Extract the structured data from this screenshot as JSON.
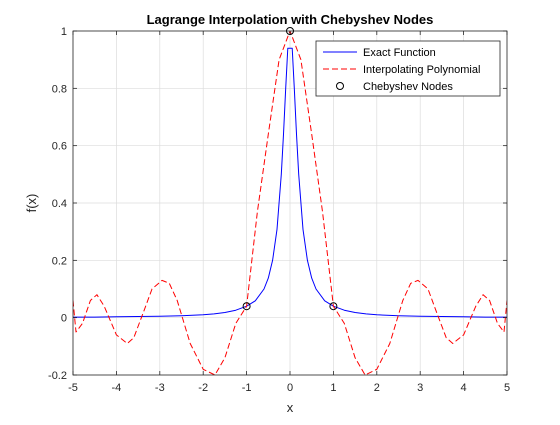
{
  "chart_data": {
    "type": "line",
    "title": "Lagrange Interpolation with Chebyshev Nodes",
    "xlabel": "x",
    "ylabel": "f(x)",
    "xlim": [
      -5,
      5
    ],
    "ylim": [
      -0.2,
      1
    ],
    "xticks": [
      -5,
      -4,
      -3,
      -2,
      -1,
      0,
      1,
      2,
      3,
      4,
      5
    ],
    "yticks": [
      -0.2,
      0,
      0.2,
      0.4,
      0.6,
      0.8,
      1
    ],
    "grid": true,
    "legend_position": "top-right",
    "series": [
      {
        "name": "Exact Function",
        "style": "solid",
        "color": "#0000ff",
        "x": [
          -5,
          -4.5,
          -4,
          -3.5,
          -3,
          -2.5,
          -2,
          -1.75,
          -1.5,
          -1.25,
          -1,
          -0.8,
          -0.6,
          -0.5,
          -0.4,
          -0.3,
          -0.2,
          -0.15,
          -0.1,
          -0.05,
          0,
          0.05,
          0.1,
          0.15,
          0.2,
          0.3,
          0.4,
          0.5,
          0.6,
          0.8,
          1,
          1.25,
          1.5,
          1.75,
          2,
          2.5,
          3,
          3.5,
          4,
          4.5,
          5
        ],
        "y": [
          0.002,
          0.002,
          0.003,
          0.004,
          0.005,
          0.007,
          0.01,
          0.013,
          0.018,
          0.026,
          0.04,
          0.059,
          0.1,
          0.138,
          0.2,
          0.308,
          0.5,
          0.64,
          0.8,
          0.94,
          0.94,
          0.94,
          0.8,
          0.64,
          0.5,
          0.308,
          0.2,
          0.138,
          0.1,
          0.059,
          0.04,
          0.026,
          0.018,
          0.013,
          0.01,
          0.007,
          0.005,
          0.004,
          0.003,
          0.002,
          0.002
        ]
      },
      {
        "name": "Interpolating Polynomial",
        "style": "dashed",
        "color": "#ff0000",
        "x": [
          -5,
          -4.93,
          -4.78,
          -4.6,
          -4.45,
          -4.28,
          -4.0,
          -3.75,
          -3.6,
          -3.35,
          -3.18,
          -2.95,
          -2.78,
          -2.6,
          -2.3,
          -2.0,
          -1.73,
          -1.5,
          -1.25,
          -1.0,
          -0.75,
          -0.5,
          -0.25,
          0,
          0.25,
          0.5,
          0.75,
          1.0,
          1.25,
          1.5,
          1.73,
          2.0,
          2.3,
          2.6,
          2.78,
          2.95,
          3.18,
          3.35,
          3.6,
          3.75,
          4.0,
          4.28,
          4.45,
          4.6,
          4.78,
          4.93,
          5
        ],
        "y": [
          0.06,
          -0.05,
          -0.02,
          0.06,
          0.08,
          0.04,
          -0.06,
          -0.09,
          -0.07,
          0.03,
          0.1,
          0.13,
          0.12,
          0.06,
          -0.09,
          -0.18,
          -0.2,
          -0.14,
          -0.02,
          0.04,
          0.37,
          0.64,
          0.9,
          1.0,
          0.9,
          0.64,
          0.37,
          0.04,
          -0.02,
          -0.14,
          -0.2,
          -0.18,
          -0.09,
          0.06,
          0.12,
          0.13,
          0.1,
          0.03,
          -0.07,
          -0.09,
          -0.06,
          0.04,
          0.08,
          0.06,
          -0.02,
          -0.05,
          0.06
        ]
      },
      {
        "name": "Chebyshev Nodes",
        "style": "markers",
        "marker": "circle",
        "color": "#000000",
        "x": [
          -1,
          0,
          1
        ],
        "y": [
          0.04,
          1,
          0.04
        ]
      }
    ]
  }
}
